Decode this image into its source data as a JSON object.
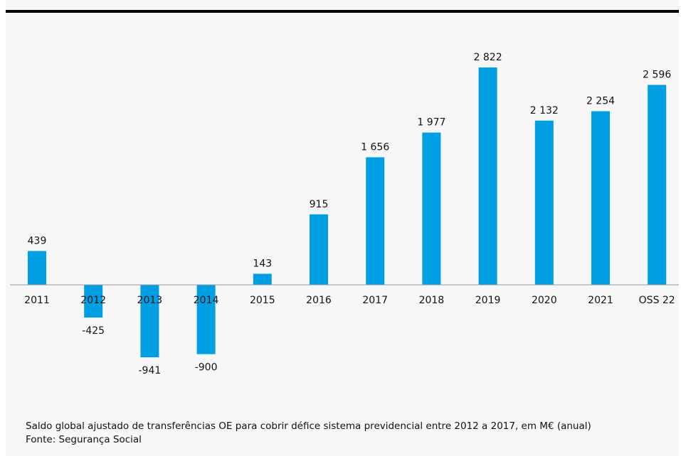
{
  "chart_data": {
    "type": "bar",
    "categories": [
      "2011",
      "2012",
      "2013",
      "2014",
      "2015",
      "2016",
      "2017",
      "2018",
      "2019",
      "2020",
      "2021",
      "OSS 22"
    ],
    "values": [
      439,
      -425,
      -941,
      -900,
      143,
      915,
      1656,
      1977,
      2822,
      2132,
      2254,
      2596
    ],
    "value_labels": [
      "439",
      "-425",
      "-941",
      "-900",
      "143",
      "915",
      "1 656",
      "1 977",
      "2 822",
      "2 132",
      "2 254",
      "2 596"
    ],
    "ylim": [
      -1000,
      3000
    ],
    "grid": false,
    "bar_color": "#009fe3",
    "xlabel": "",
    "ylabel": ""
  },
  "caption": {
    "line1": "Saldo global ajustado de transferências OE para cobrir défice sistema previdencial entre 2012 a 2017, em M€ (anual)",
    "line2": "Fonte: Segurança Social"
  }
}
